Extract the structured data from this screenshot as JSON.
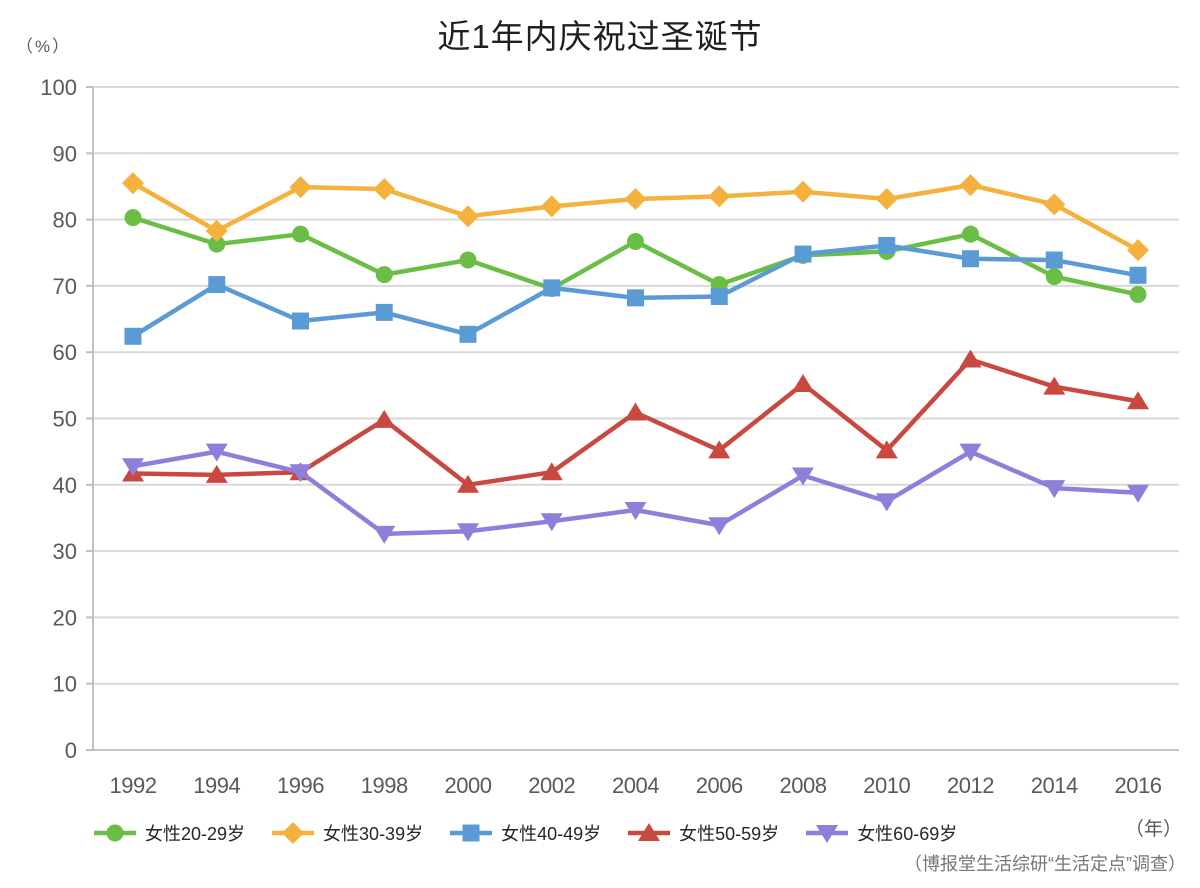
{
  "page": {
    "title": "近1年内庆祝过圣诞节",
    "y_unit_label": "（%）",
    "x_unit_label": "（年）",
    "source_note": "（博报堂生活综研“生活定点”调查）"
  },
  "style": {
    "grid_color": "#d9d9d9",
    "axis_line_color": "#c3c3c3",
    "tick_color": "#bfbfbf",
    "axis_text_color": "#595959",
    "background": "#ffffff"
  },
  "chart_data": {
    "type": "line",
    "title": "近1年内庆祝过圣诞节",
    "categories": [
      "1992",
      "1994",
      "1996",
      "1998",
      "2000",
      "2002",
      "2004",
      "2006",
      "2008",
      "2010",
      "2012",
      "2014",
      "2016"
    ],
    "xlabel": "（年）",
    "ylabel": "（%）",
    "ylim": [
      0,
      100
    ],
    "ytick_step": 10,
    "grid": "horizontal",
    "legend_position": "bottom",
    "source": "（博报堂生活综研“生活定点”调查）",
    "series": [
      {
        "name": "女性20-29岁",
        "marker": "circle",
        "color": "#6BBE45",
        "values": [
          80.3,
          76.3,
          77.8,
          71.7,
          73.9,
          69.6,
          76.7,
          70.2,
          74.6,
          75.2,
          77.8,
          71.4,
          68.7
        ]
      },
      {
        "name": "女性30-39岁",
        "marker": "diamond",
        "color": "#F4B13E",
        "values": [
          85.5,
          78.3,
          84.9,
          84.6,
          80.5,
          82.0,
          83.1,
          83.5,
          84.2,
          83.1,
          85.2,
          82.3,
          75.4
        ]
      },
      {
        "name": "女性40-49岁",
        "marker": "square",
        "color": "#5B9BD5",
        "values": [
          62.4,
          70.2,
          64.7,
          66.0,
          62.7,
          69.7,
          68.2,
          68.4,
          74.8,
          76.1,
          74.1,
          73.9,
          71.6
        ]
      },
      {
        "name": "女性50-59岁",
        "marker": "triangle-up",
        "color": "#C9483F",
        "values": [
          41.7,
          41.5,
          41.9,
          49.8,
          40.0,
          41.9,
          50.9,
          45.2,
          55.2,
          45.2,
          58.9,
          54.8,
          52.6
        ]
      },
      {
        "name": "女性60-69岁",
        "marker": "triangle-down",
        "color": "#8E7FDB",
        "values": [
          42.8,
          45.0,
          41.9,
          32.6,
          33.0,
          34.5,
          36.2,
          33.9,
          41.4,
          37.5,
          45.0,
          39.5,
          38.8
        ]
      }
    ]
  }
}
